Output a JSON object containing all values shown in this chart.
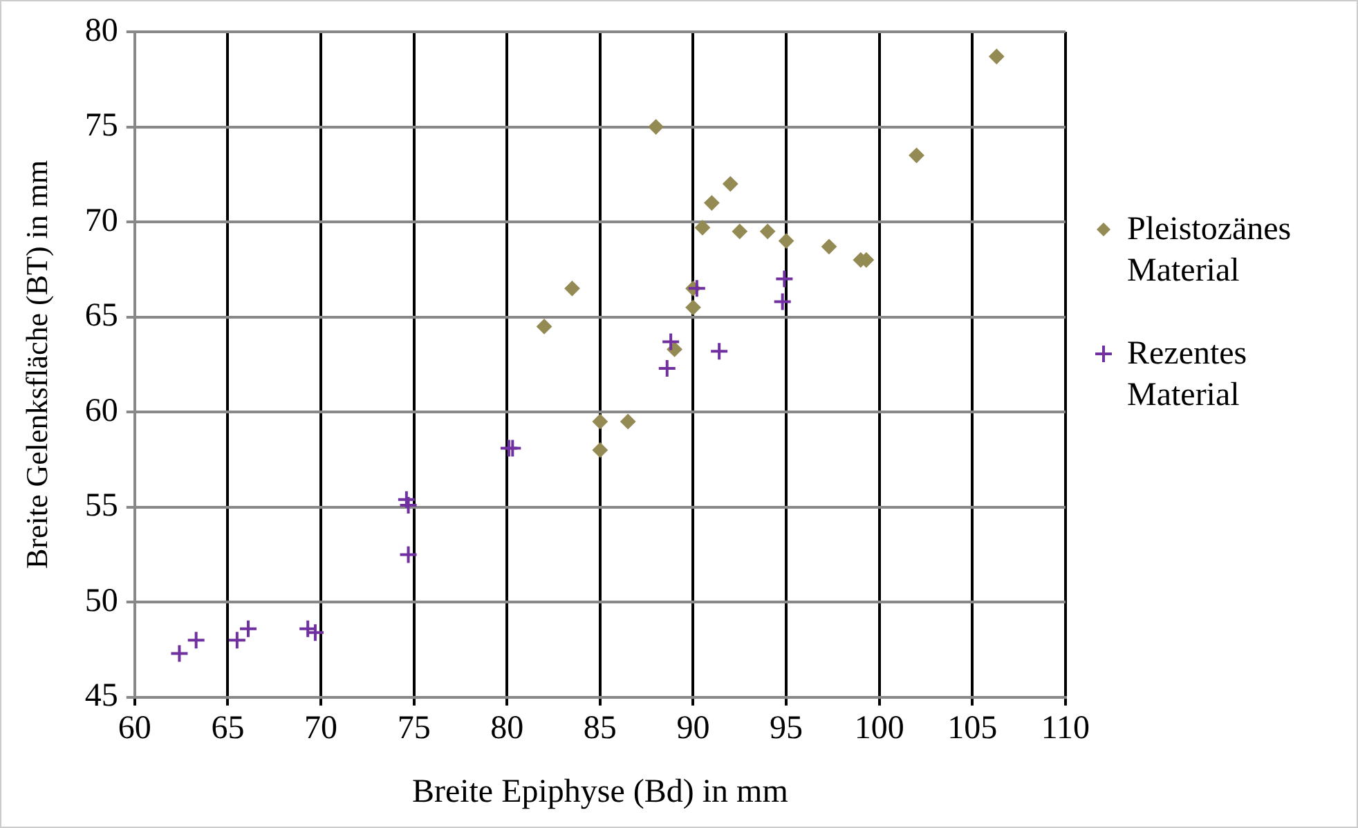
{
  "chart_data": {
    "type": "scatter",
    "xlabel": "Breite Epiphyse (Bd) in mm",
    "ylabel": "Breite Gelenksfläche (BT) in mm",
    "xlim": [
      60,
      110
    ],
    "xticks": [
      60,
      65,
      70,
      75,
      80,
      85,
      90,
      95,
      100,
      105,
      110
    ],
    "ylim": [
      45,
      80
    ],
    "yticks": [
      45,
      50,
      55,
      60,
      65,
      70,
      75,
      80
    ],
    "grid": true,
    "legend": "right",
    "series": [
      {
        "name": "Pleistozänes Material",
        "color": "#948a54",
        "marker": "diamond",
        "x": [
          88,
          106.3,
          102,
          92,
          91,
          90.5,
          92.5,
          94,
          95,
          97.3,
          99,
          99.3,
          83.5,
          90,
          90,
          82,
          89,
          85,
          86.5,
          85
        ],
        "values": [
          75,
          78.7,
          73.5,
          72,
          71,
          69.7,
          69.5,
          69.5,
          69,
          68.7,
          68,
          68,
          66.5,
          66.5,
          65.5,
          64.5,
          63.3,
          59.5,
          59.5,
          58
        ]
      },
      {
        "name": "Rezentes Material",
        "color": "#7030a0",
        "marker": "cross",
        "x": [
          62.4,
          63.3,
          65.5,
          66.1,
          69.3,
          69.7,
          74.6,
          74.7,
          74.7,
          80.1,
          80.3,
          88.8,
          88.6,
          91.4,
          90.2,
          94.9,
          94.8
        ],
        "values": [
          47.3,
          48,
          48,
          48.6,
          48.6,
          48.4,
          55.4,
          55.1,
          52.5,
          58.1,
          58.1,
          63.7,
          62.3,
          63.2,
          66.5,
          67,
          65.8
        ]
      }
    ]
  }
}
